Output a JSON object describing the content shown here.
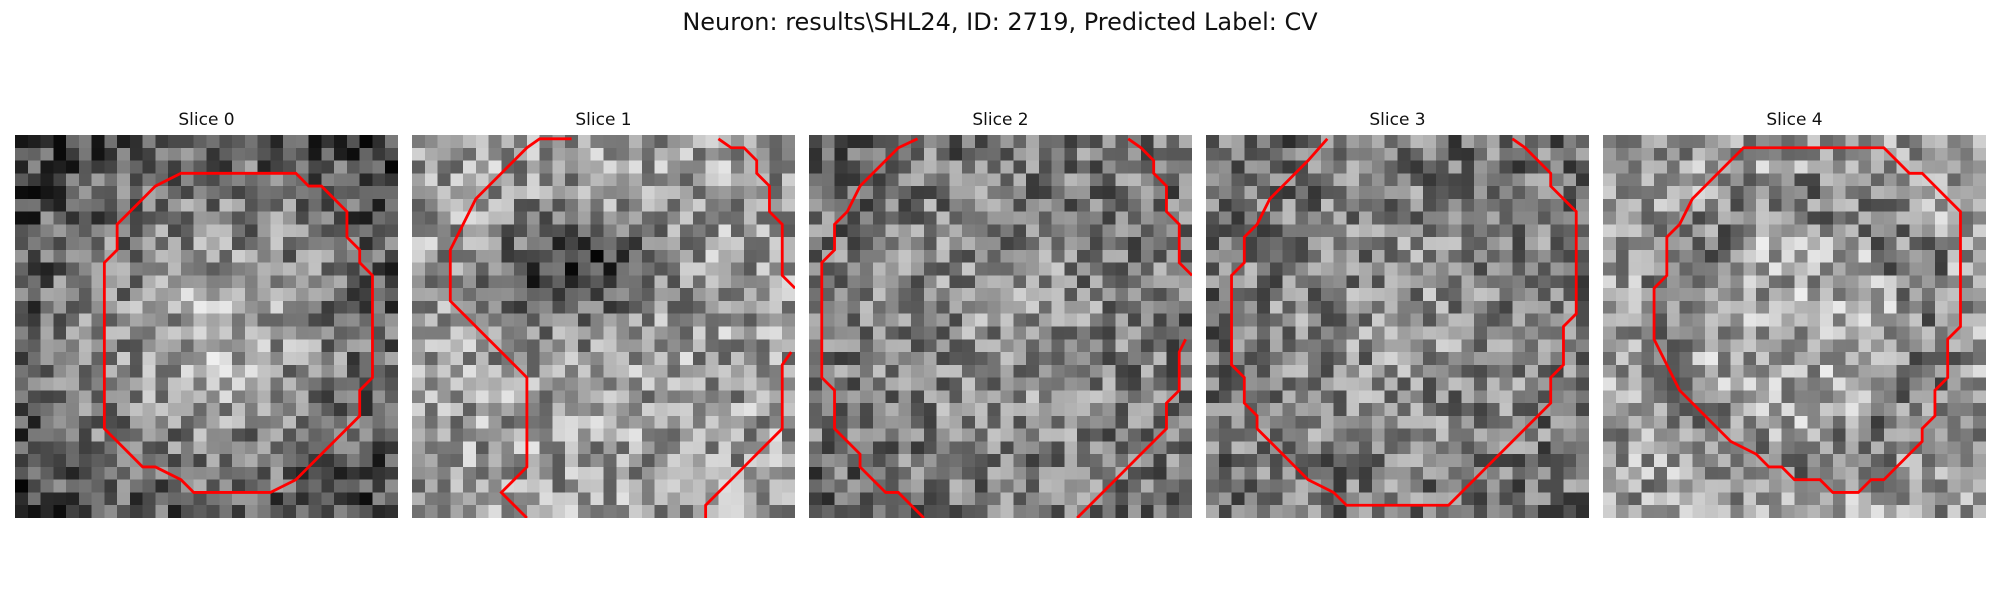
{
  "figure": {
    "title": "Neuron: results\\SHL24, ID: 2719, Predicted Label: CV"
  },
  "contour_color": "#ff0000",
  "colormap": "gray",
  "panels": [
    {
      "title": "Slice 0",
      "seed": 11,
      "pattern": "bright-center"
    },
    {
      "title": "Slice 1",
      "seed": 23,
      "pattern": "dark-blob"
    },
    {
      "title": "Slice 2",
      "seed": 37,
      "pattern": "uniform"
    },
    {
      "title": "Slice 3",
      "seed": 41,
      "pattern": "uniform"
    },
    {
      "title": "Slice 4",
      "seed": 53,
      "pattern": "ring"
    }
  ]
}
